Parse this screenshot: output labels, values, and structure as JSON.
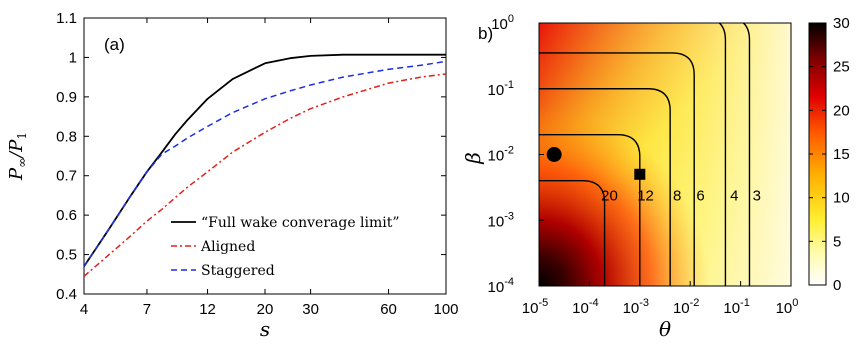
{
  "panels": {
    "a_label": "(a)",
    "b_label": "b)"
  },
  "chart_data": [
    {
      "type": "line",
      "panel": "(a)",
      "ylabel": "P∞/P1",
      "xlabel": "s",
      "x_scale": "log",
      "xlim": [
        4,
        100
      ],
      "ylim": [
        0.4,
        1.1
      ],
      "x_ticks": [
        4,
        7,
        12,
        20,
        30,
        60,
        100
      ],
      "x_tick_labels": [
        "4",
        "7",
        "12",
        "20",
        "30",
        "60",
        "100"
      ],
      "y_ticks": [
        0.4,
        0.5,
        0.6,
        0.7,
        0.8,
        0.9,
        1.0,
        1.1
      ],
      "y_tick_labels": [
        "0.4",
        "0.5",
        "0.6",
        "0.7",
        "0.8",
        "0.9",
        "1",
        "1.1"
      ],
      "legend_position": "bottom-right",
      "series": [
        {
          "name": "“Full wake converage limit”",
          "color": "#000000",
          "style": "solid",
          "x": [
            4,
            4.5,
            5,
            6,
            7,
            8,
            9,
            10,
            12,
            15,
            20,
            25,
            30,
            40,
            60,
            80,
            100
          ],
          "y": [
            0.47,
            0.52,
            0.565,
            0.645,
            0.71,
            0.76,
            0.805,
            0.84,
            0.895,
            0.945,
            0.985,
            0.998,
            1.004,
            1.007,
            1.007,
            1.007,
            1.007
          ]
        },
        {
          "name": "Aligned",
          "color": "#e0201b",
          "style": "dashdot",
          "x": [
            4,
            5,
            6,
            7,
            8,
            10,
            12,
            15,
            20,
            25,
            30,
            40,
            60,
            80,
            100
          ],
          "y": [
            0.445,
            0.5,
            0.545,
            0.585,
            0.615,
            0.67,
            0.71,
            0.76,
            0.81,
            0.845,
            0.87,
            0.9,
            0.935,
            0.95,
            0.958
          ]
        },
        {
          "name": "Staggered",
          "color": "#1b2fe0",
          "style": "dashed",
          "x": [
            4,
            4.5,
            5,
            6,
            7,
            8,
            9,
            10,
            12,
            15,
            20,
            25,
            30,
            40,
            60,
            80,
            100
          ],
          "y": [
            0.47,
            0.52,
            0.565,
            0.645,
            0.71,
            0.755,
            0.775,
            0.795,
            0.825,
            0.86,
            0.895,
            0.915,
            0.93,
            0.95,
            0.97,
            0.98,
            0.99
          ]
        }
      ]
    },
    {
      "type": "heatmap",
      "panel": "b)",
      "xlabel": "θ",
      "ylabel": "β",
      "x_scale": "log",
      "y_scale": "log",
      "xlim": [
        1e-05,
        1
      ],
      "ylim": [
        0.0001,
        1
      ],
      "x_tick_labels": [
        "10-5",
        "10-4",
        "10-3",
        "10-2",
        "10-1",
        "100"
      ],
      "y_tick_labels": [
        "10-4",
        "10-3",
        "10-2",
        "10-1",
        "100"
      ],
      "colorbar": {
        "min": 0,
        "max": 30,
        "ticks": [
          0,
          5,
          10,
          15,
          20,
          25,
          30
        ],
        "colormap": "hot (white-yellow-red-black)"
      },
      "contour_levels": [
        20,
        12,
        8,
        6,
        4,
        3
      ],
      "contour_label_text": [
        "20",
        "12",
        "8",
        "6",
        "4",
        "3"
      ],
      "markers": [
        {
          "shape": "circle",
          "theta": 2e-05,
          "beta": 0.01
        },
        {
          "shape": "square",
          "theta": 0.001,
          "beta": 0.005
        }
      ]
    }
  ]
}
